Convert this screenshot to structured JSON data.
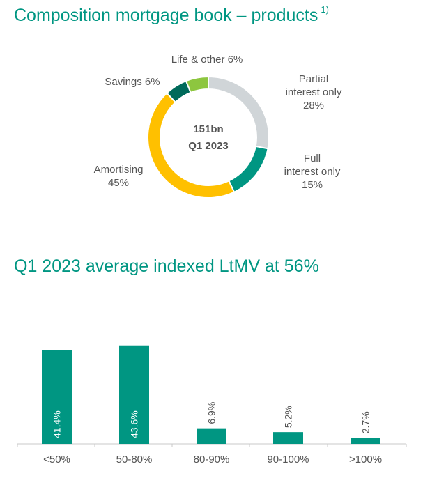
{
  "titles": {
    "donut": "Composition mortgage book – products",
    "donut_footnote": "1)",
    "bars": "Q1 2023 average indexed LtMV at 56%"
  },
  "chart_data": [
    {
      "type": "pie",
      "variant": "donut",
      "center_label": [
        "151bn",
        "Q1 2023"
      ],
      "slices": [
        {
          "label": [
            "Partial",
            "interest only",
            "28%"
          ],
          "value": 28,
          "color": "#d0d5d8"
        },
        {
          "label": [
            "Full",
            "interest only",
            "15%"
          ],
          "value": 15,
          "color": "#009682"
        },
        {
          "label": [
            "Amortising",
            "45%"
          ],
          "value": 45,
          "color": "#ffc000"
        },
        {
          "label": [
            "Savings 6%"
          ],
          "value": 6,
          "color": "#006a5a"
        },
        {
          "label": [
            "Life & other 6%"
          ],
          "value": 6,
          "color": "#8dc63f"
        }
      ]
    },
    {
      "type": "bar",
      "categories": [
        "<50%",
        "50-80%",
        "80-90%",
        "90-100%",
        ">100%"
      ],
      "values": [
        41.4,
        43.6,
        6.9,
        5.2,
        2.7
      ],
      "data_labels": [
        "41.4%",
        "43.6%",
        "6.9%",
        "5.2%",
        "2.7%"
      ],
      "color": "#009682",
      "grid": false
    }
  ]
}
